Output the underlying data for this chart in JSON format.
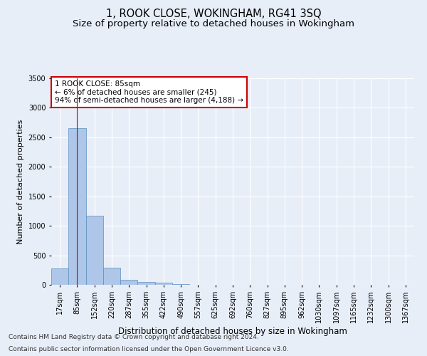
{
  "title": "1, ROOK CLOSE, WOKINGHAM, RG41 3SQ",
  "subtitle": "Size of property relative to detached houses in Wokingham",
  "xlabel": "Distribution of detached houses by size in Wokingham",
  "ylabel": "Number of detached properties",
  "categories": [
    "17sqm",
    "85sqm",
    "152sqm",
    "220sqm",
    "287sqm",
    "355sqm",
    "422sqm",
    "490sqm",
    "557sqm",
    "625sqm",
    "692sqm",
    "760sqm",
    "827sqm",
    "895sqm",
    "962sqm",
    "1030sqm",
    "1097sqm",
    "1165sqm",
    "1232sqm",
    "1300sqm",
    "1367sqm"
  ],
  "values": [
    275,
    2650,
    1165,
    285,
    90,
    45,
    40,
    15,
    0,
    0,
    0,
    0,
    0,
    0,
    0,
    0,
    0,
    0,
    0,
    0,
    0
  ],
  "highlight_index": 1,
  "bar_color": "#aec6e8",
  "bar_edge_color": "#5a8fc0",
  "annotation_text": "1 ROOK CLOSE: 85sqm\n← 6% of detached houses are smaller (245)\n94% of semi-detached houses are larger (4,188) →",
  "annotation_box_color": "#ffffff",
  "annotation_edge_color": "#cc0000",
  "background_color": "#e8eef8",
  "grid_color": "#ffffff",
  "ylim": [
    0,
    3500
  ],
  "yticks": [
    0,
    500,
    1000,
    1500,
    2000,
    2500,
    3000,
    3500
  ],
  "footer_line1": "Contains HM Land Registry data © Crown copyright and database right 2024.",
  "footer_line2": "Contains public sector information licensed under the Open Government Licence v3.0.",
  "title_fontsize": 10.5,
  "subtitle_fontsize": 9.5,
  "xlabel_fontsize": 8.5,
  "ylabel_fontsize": 8,
  "tick_fontsize": 7,
  "annotation_fontsize": 7.5,
  "footer_fontsize": 6.5
}
